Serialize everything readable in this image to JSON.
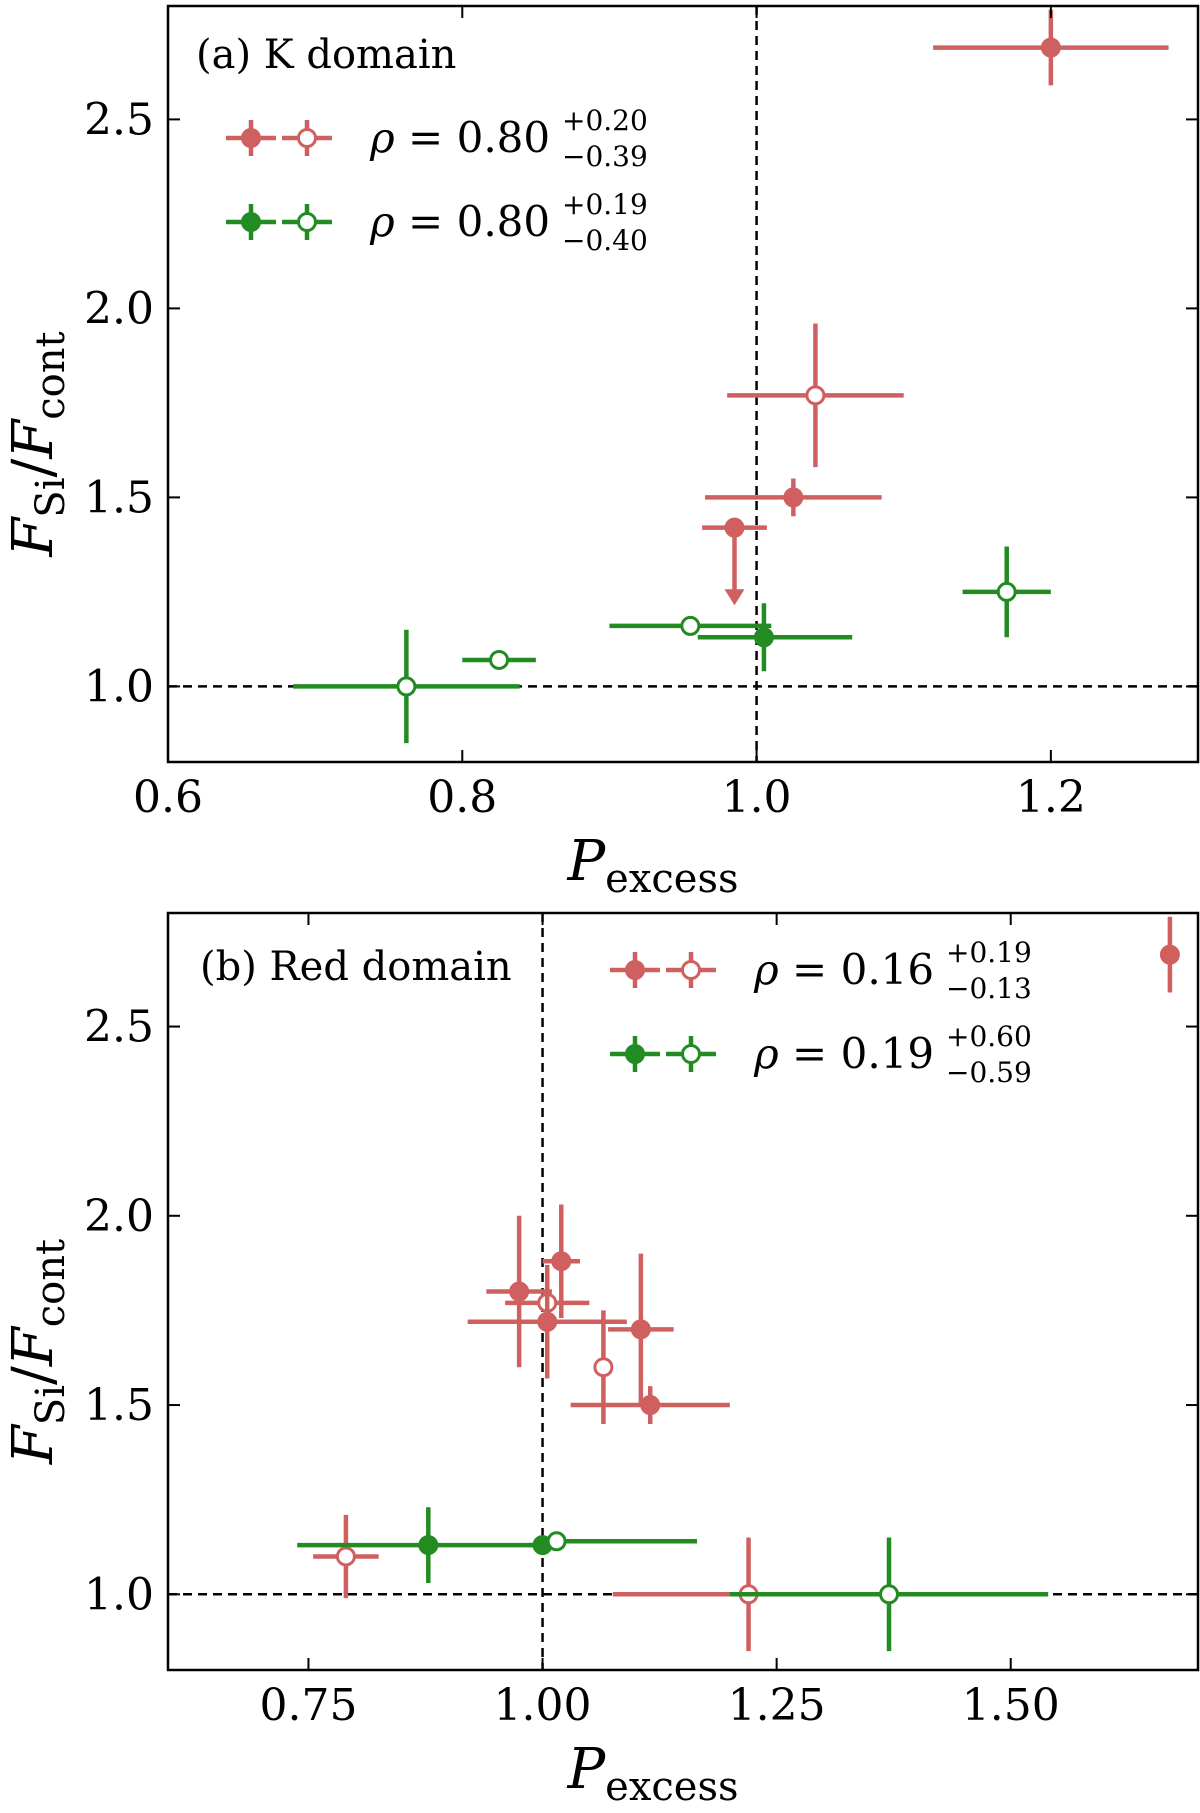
{
  "colors": {
    "red": "#d06060",
    "green": "#228b22"
  },
  "chart_data": [
    {
      "type": "scatter",
      "title": "(a) K domain",
      "xlabel": "P",
      "xlabel_sub": "excess",
      "ylabel": "F",
      "ylabel_sub_num": "Si",
      "ylabel_den": "F",
      "ylabel_sub_den": "cont",
      "xlim": [
        0.6,
        1.3
      ],
      "ylim": [
        0.8,
        2.8
      ],
      "xticks": [
        0.6,
        0.8,
        1.0,
        1.2
      ],
      "xtick_labels": [
        "0.6",
        "0.8",
        "1.0",
        "1.2"
      ],
      "yticks": [
        1.0,
        1.5,
        2.0,
        2.5
      ],
      "ytick_labels": [
        "1.0",
        "1.5",
        "2.0",
        "2.5"
      ],
      "vline": 1.0,
      "hline": 1.0,
      "legend_placement": "top-left",
      "legend": [
        {
          "color": "red",
          "rho": "0.80",
          "sup": "+0.20",
          "sub": "−0.39"
        },
        {
          "color": "green",
          "rho": "0.80",
          "sup": "+0.19",
          "sub": "−0.40"
        }
      ],
      "series": [
        {
          "color": "red",
          "points": [
            {
              "x": 1.2,
              "y": 2.69,
              "xerr": [
                0.08,
                0.08
              ],
              "yerr": [
                0.1,
                0.1
              ],
              "filled": true
            },
            {
              "x": 1.04,
              "y": 1.77,
              "xerr": [
                0.06,
                0.06
              ],
              "yerr": [
                0.19,
                0.19
              ],
              "filled": false
            },
            {
              "x": 1.025,
              "y": 1.5,
              "xerr": [
                0.06,
                0.06
              ],
              "yerr": [
                0.05,
                0.05
              ],
              "filled": true
            },
            {
              "x": 0.985,
              "y": 1.42,
              "xerr": [
                0.022,
                0.022
              ],
              "yerr": [
                0,
                0
              ],
              "filled": true,
              "upper_limit": true
            }
          ]
        },
        {
          "color": "green",
          "points": [
            {
              "x": 1.17,
              "y": 1.25,
              "xerr": [
                0.03,
                0.03
              ],
              "yerr": [
                0.12,
                0.12
              ],
              "filled": false
            },
            {
              "x": 0.955,
              "y": 1.16,
              "xerr": [
                0.055,
                0.055
              ],
              "yerr": [
                0.02,
                0.02
              ],
              "filled": false
            },
            {
              "x": 1.005,
              "y": 1.13,
              "xerr": [
                0.045,
                0.06
              ],
              "yerr": [
                0.09,
                0.09
              ],
              "filled": true
            },
            {
              "x": 0.825,
              "y": 1.07,
              "xerr": [
                0.025,
                0.025
              ],
              "yerr": [
                0.01,
                0.01
              ],
              "filled": false
            },
            {
              "x": 0.762,
              "y": 1.0,
              "xerr": [
                0.077,
                0.077
              ],
              "yerr": [
                0.15,
                0.15
              ],
              "filled": false
            }
          ]
        }
      ]
    },
    {
      "type": "scatter",
      "title": "(b) Red domain",
      "xlabel": "P",
      "xlabel_sub": "excess",
      "ylabel": "F",
      "ylabel_sub_num": "Si",
      "ylabel_den": "F",
      "ylabel_sub_den": "cont",
      "xlim": [
        0.6,
        1.7
      ],
      "ylim": [
        0.8,
        2.8
      ],
      "xticks": [
        0.75,
        1.0,
        1.25,
        1.5
      ],
      "xtick_labels": [
        "0.75",
        "1.00",
        "1.25",
        "1.50"
      ],
      "yticks": [
        1.0,
        1.5,
        2.0,
        2.5
      ],
      "ytick_labels": [
        "1.0",
        "1.5",
        "2.0",
        "2.5"
      ],
      "vline": 1.0,
      "hline": 1.0,
      "legend_placement": "top-center",
      "legend": [
        {
          "color": "red",
          "rho": "0.16",
          "sup": "+0.19",
          "sub": "−0.13"
        },
        {
          "color": "green",
          "rho": "0.19",
          "sup": "+0.60",
          "sub": "−0.59"
        }
      ],
      "series": [
        {
          "color": "red",
          "points": [
            {
              "x": 1.67,
              "y": 2.69,
              "xerr": [
                0.01,
                0.01
              ],
              "yerr": [
                0.1,
                0.1
              ],
              "filled": true
            },
            {
              "x": 1.02,
              "y": 1.88,
              "xerr": [
                0.02,
                0.02
              ],
              "yerr": [
                0.15,
                0.15
              ],
              "filled": true
            },
            {
              "x": 0.975,
              "y": 1.8,
              "xerr": [
                0.035,
                0.035
              ],
              "yerr": [
                0.2,
                0.2
              ],
              "filled": true
            },
            {
              "x": 1.005,
              "y": 1.77,
              "xerr": [
                0.045,
                0.045
              ],
              "yerr": [
                0.06,
                0.06
              ],
              "filled": false
            },
            {
              "x": 1.005,
              "y": 1.72,
              "xerr": [
                0.085,
                0.085
              ],
              "yerr": [
                0.15,
                0.15
              ],
              "filled": true
            },
            {
              "x": 1.105,
              "y": 1.7,
              "xerr": [
                0.035,
                0.035
              ],
              "yerr": [
                0.2,
                0.2
              ],
              "filled": true
            },
            {
              "x": 1.065,
              "y": 1.6,
              "xerr": [
                0.005,
                0.005
              ],
              "yerr": [
                0.15,
                0.15
              ],
              "filled": false
            },
            {
              "x": 1.115,
              "y": 1.5,
              "xerr": [
                0.085,
                0.085
              ],
              "yerr": [
                0.05,
                0.05
              ],
              "filled": true
            },
            {
              "x": 0.79,
              "y": 1.1,
              "xerr": [
                0.035,
                0.035
              ],
              "yerr": [
                0.11,
                0.11
              ],
              "filled": false
            },
            {
              "x": 1.22,
              "y": 1.0,
              "xerr": [
                0.145,
                0.145
              ],
              "yerr": [
                0.15,
                0.15
              ],
              "filled": false
            }
          ]
        },
        {
          "color": "green",
          "points": [
            {
              "x": 0.878,
              "y": 1.13,
              "xerr": [
                0.14,
                0.14
              ],
              "yerr": [
                0.1,
                0.1
              ],
              "filled": true
            },
            {
              "x": 1.0,
              "y": 1.13,
              "xerr": [
                0.015,
                0.015
              ],
              "yerr": [
                0.01,
                0.01
              ],
              "filled": true
            },
            {
              "x": 1.015,
              "y": 1.14,
              "xerr": [
                0.015,
                0.15
              ],
              "yerr": [
                0.01,
                0.01
              ],
              "filled": false
            },
            {
              "x": 1.37,
              "y": 1.0,
              "xerr": [
                0.17,
                0.17
              ],
              "yerr": [
                0.15,
                0.15
              ],
              "filled": false
            }
          ]
        }
      ]
    }
  ]
}
